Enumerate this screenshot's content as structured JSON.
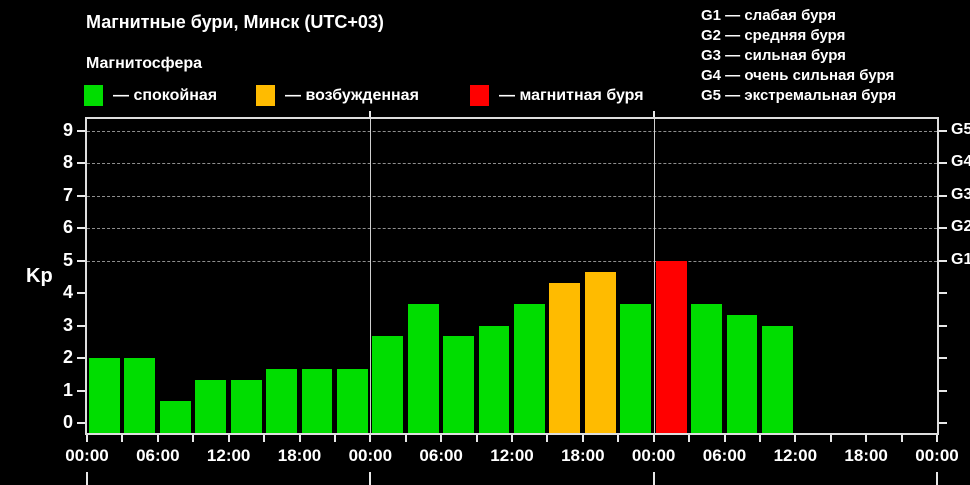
{
  "header": {
    "title": "Магнитные бури, Минск (UTC+03)",
    "subtitle": "Магнитосфера"
  },
  "legend": {
    "items": [
      {
        "label": "— спокойная",
        "color": "#00dd00"
      },
      {
        "label": "— возбужденная",
        "color": "#ffbb00"
      },
      {
        "label": "— магнитная буря",
        "color": "#ff0000"
      }
    ]
  },
  "storm_scale": {
    "items": [
      "G1 — слабая буря",
      "G2 — средняя буря",
      "G3 — сильная буря",
      "G4 — очень сильная буря",
      "G5 — экстремальная буря"
    ]
  },
  "chart_data": {
    "type": "bar",
    "title": "Магнитные бури, Минск (UTC+03)",
    "ylabel": "Kp",
    "ylim": [
      0,
      9
    ],
    "yticks": [
      0,
      1,
      2,
      3,
      4,
      5,
      6,
      7,
      8,
      9
    ],
    "grid_levels_dashed": [
      5,
      6,
      7,
      8,
      9
    ],
    "right_axis_labels": [
      {
        "kp": 9,
        "label": "G5"
      },
      {
        "kp": 8,
        "label": "G4"
      },
      {
        "kp": 7,
        "label": "G3"
      },
      {
        "kp": 6,
        "label": "G2"
      },
      {
        "kp": 5,
        "label": "G1"
      }
    ],
    "x_tick_labels": [
      "00:00",
      "06:00",
      "12:00",
      "18:00",
      "00:00",
      "06:00",
      "12:00",
      "18:00",
      "00:00",
      "06:00",
      "12:00",
      "18:00",
      "00:00"
    ],
    "hours_per_slot": 3,
    "slots": 24,
    "day_separator_slots": [
      8,
      16
    ],
    "grid_on": true,
    "legend_position": "top-left",
    "status_colors": {
      "quiet": "#00dd00",
      "unsettled": "#ffbb00",
      "storm": "#ff0000"
    },
    "values": [
      {
        "kp": 2.0,
        "status": "quiet"
      },
      {
        "kp": 2.0,
        "status": "quiet"
      },
      {
        "kp": 0.67,
        "status": "quiet"
      },
      {
        "kp": 1.33,
        "status": "quiet"
      },
      {
        "kp": 1.33,
        "status": "quiet"
      },
      {
        "kp": 1.67,
        "status": "quiet"
      },
      {
        "kp": 1.67,
        "status": "quiet"
      },
      {
        "kp": 1.67,
        "status": "quiet"
      },
      {
        "kp": 2.67,
        "status": "quiet"
      },
      {
        "kp": 3.67,
        "status": "quiet"
      },
      {
        "kp": 2.67,
        "status": "quiet"
      },
      {
        "kp": 3.0,
        "status": "quiet"
      },
      {
        "kp": 3.67,
        "status": "quiet"
      },
      {
        "kp": 4.33,
        "status": "unsettled"
      },
      {
        "kp": 4.67,
        "status": "unsettled"
      },
      {
        "kp": 3.67,
        "status": "quiet"
      },
      {
        "kp": 5.0,
        "status": "storm"
      },
      {
        "kp": 3.67,
        "status": "quiet"
      },
      {
        "kp": 3.33,
        "status": "quiet"
      },
      {
        "kp": 3.0,
        "status": "quiet"
      },
      {
        "kp": null,
        "status": "none"
      },
      {
        "kp": null,
        "status": "none"
      },
      {
        "kp": null,
        "status": "none"
      },
      {
        "kp": null,
        "status": "none"
      }
    ]
  }
}
